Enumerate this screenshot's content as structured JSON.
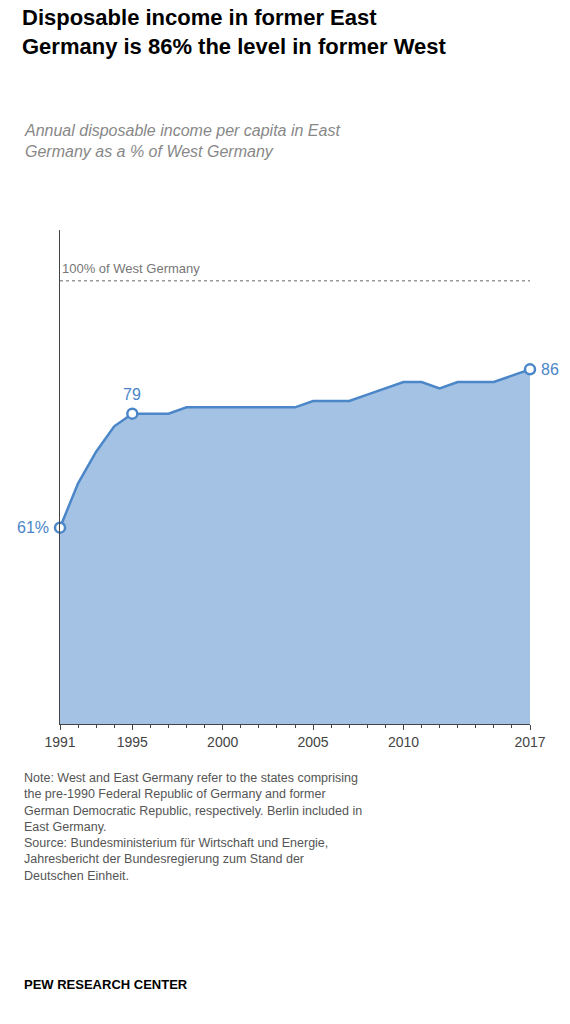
{
  "chart_data": {
    "type": "area",
    "title": "Disposable income in former East\nGermany is 86% the level in former West",
    "subtitle": "Annual disposable income per capita in East\nGermany as a % of West Germany",
    "x": [
      1991,
      1992,
      1993,
      1994,
      1995,
      1996,
      1997,
      1998,
      1999,
      2000,
      2001,
      2002,
      2003,
      2004,
      2005,
      2006,
      2007,
      2008,
      2009,
      2010,
      2011,
      2012,
      2013,
      2014,
      2015,
      2016,
      2017
    ],
    "values": [
      61,
      68,
      73,
      77,
      79,
      79,
      79,
      80,
      80,
      80,
      80,
      80,
      80,
      80,
      81,
      81,
      81,
      82,
      83,
      84,
      84,
      83,
      84,
      84,
      84,
      85,
      86
    ],
    "color": "#4a86c8",
    "xlim": [
      1991,
      2017
    ],
    "xticks": [
      1991,
      1995,
      2000,
      2005,
      2010,
      2017
    ],
    "ylim": [
      30,
      108
    ],
    "tick_labels": "x",
    "grid": false,
    "annotations": [
      {
        "x": 1991,
        "y": 61,
        "text": "61%"
      },
      {
        "x": 1995,
        "y": 79,
        "text": "79"
      },
      {
        "x": 2017,
        "y": 86,
        "text": "86"
      }
    ],
    "reference_line": {
      "y": 100,
      "label": "100% of West Germany"
    },
    "note": "Note: West and East Germany refer to the states comprising\nthe pre-1990 Federal Republic of Germany and former\nGerman Democratic Republic, respectively. Berlin included in\nEast Germany.\nSource: Bundesministerium für Wirtschaft und Energie,\nJahresbericht der Bundesregierung zum Stand der\nDeutschen Einheit.",
    "footer": "PEW RESEARCH CENTER"
  }
}
